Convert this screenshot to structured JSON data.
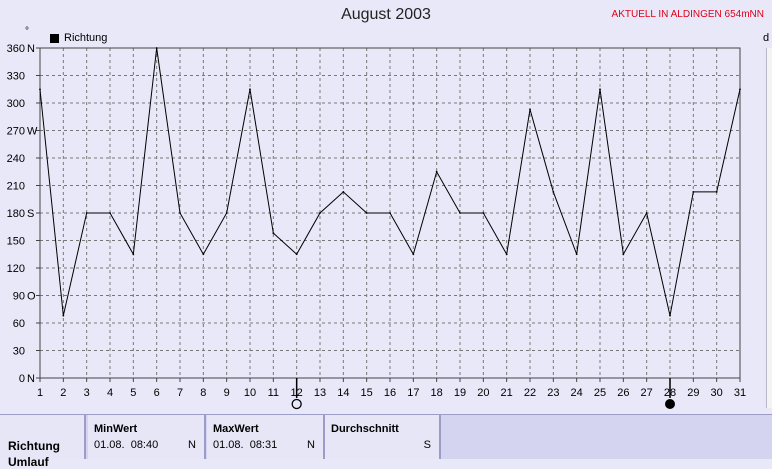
{
  "header": {
    "title": "August 2003",
    "station": "AKTUELL IN ALDINGEN 654mNN",
    "degree_symbol": "°",
    "corner_label": "d"
  },
  "chart_data": {
    "type": "line",
    "title": "August 2003",
    "legend": [
      "Richtung"
    ],
    "legend_placement": "top-left",
    "grid": true,
    "x": [
      1,
      2,
      3,
      4,
      5,
      6,
      7,
      8,
      9,
      10,
      11,
      12,
      13,
      14,
      15,
      16,
      17,
      18,
      19,
      20,
      21,
      22,
      23,
      24,
      25,
      26,
      27,
      28,
      29,
      30,
      31
    ],
    "xlim": [
      1,
      31
    ],
    "ylim": [
      0,
      360
    ],
    "yticks": [
      {
        "value": 0,
        "label": "0",
        "dir": "N"
      },
      {
        "value": 30,
        "label": "30",
        "dir": ""
      },
      {
        "value": 60,
        "label": "60",
        "dir": ""
      },
      {
        "value": 90,
        "label": "90",
        "dir": "O"
      },
      {
        "value": 120,
        "label": "120",
        "dir": ""
      },
      {
        "value": 150,
        "label": "150",
        "dir": ""
      },
      {
        "value": 180,
        "label": "180",
        "dir": "S"
      },
      {
        "value": 210,
        "label": "210",
        "dir": ""
      },
      {
        "value": 240,
        "label": "240",
        "dir": ""
      },
      {
        "value": 270,
        "label": "270",
        "dir": "W"
      },
      {
        "value": 300,
        "label": "300",
        "dir": ""
      },
      {
        "value": 330,
        "label": "330",
        "dir": ""
      },
      {
        "value": 360,
        "label": "360",
        "dir": "N"
      }
    ],
    "series": [
      {
        "name": "Richtung",
        "color": "#000000",
        "values": [
          315,
          68,
          180,
          180,
          135,
          360,
          180,
          135,
          180,
          315,
          158,
          135,
          180,
          203,
          180,
          180,
          135,
          225,
          180,
          180,
          135,
          293,
          203,
          135,
          315,
          135,
          180,
          68,
          203,
          203,
          315
        ]
      }
    ],
    "moon_markers": [
      {
        "day": 12,
        "phase": "full-moon"
      },
      {
        "day": 28,
        "phase": "new-moon"
      }
    ]
  },
  "stats": {
    "row_label": "Richtung",
    "row_label_next": "Umlauf",
    "min": {
      "header": "MinWert",
      "value": "01.08.  08:40",
      "dir": "N"
    },
    "max": {
      "header": "MaxWert",
      "value": "01.08.  08:31",
      "dir": "N"
    },
    "avg": {
      "header": "Durchschnitt",
      "value": "",
      "dir": "S"
    }
  }
}
